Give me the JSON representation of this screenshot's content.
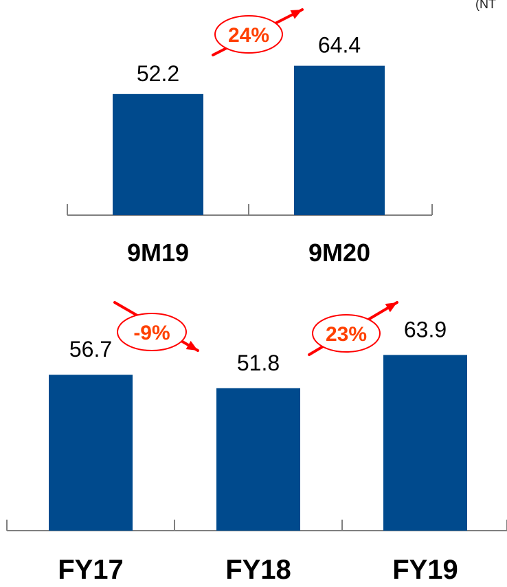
{
  "unit_note": "(NT",
  "colors": {
    "bar": "#004a8d",
    "growth": "#ff0000",
    "growth_text": "#ff4000",
    "axis": "#7f7f7f",
    "text": "#000000"
  },
  "chart_data": [
    {
      "type": "bar",
      "categories": [
        "9M19",
        "9M20"
      ],
      "values": [
        52.2,
        64.4
      ],
      "value_labels": [
        "52.2",
        "64.4"
      ],
      "growth": [
        {
          "from": "9M19",
          "to": "9M20",
          "label": "24%",
          "direction": "up"
        }
      ]
    },
    {
      "type": "bar",
      "categories": [
        "FY17",
        "FY18",
        "FY19"
      ],
      "values": [
        56.7,
        51.8,
        63.9
      ],
      "value_labels": [
        "56.7",
        "51.8",
        "63.9"
      ],
      "growth": [
        {
          "from": "FY17",
          "to": "FY18",
          "label": "-9%",
          "direction": "down"
        },
        {
          "from": "FY18",
          "to": "FY19",
          "label": "23%",
          "direction": "up"
        }
      ]
    }
  ]
}
